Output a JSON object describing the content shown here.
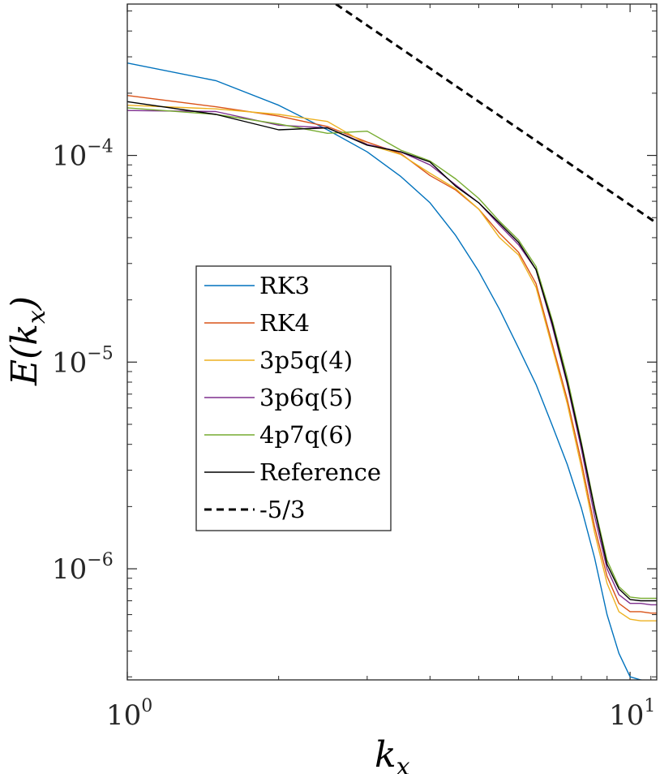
{
  "chart_data": {
    "type": "line",
    "title": "",
    "xscale": "log",
    "yscale": "log",
    "xlim": [
      1,
      11.3
    ],
    "ylim": [
      2.9e-07,
      0.00054
    ],
    "xticks": [
      {
        "base": "10",
        "exp": "0",
        "value": 1
      },
      {
        "base": "10",
        "exp": "1",
        "value": 10
      }
    ],
    "yticks": [
      {
        "base": "10",
        "exp": "−6",
        "value": 1e-06
      },
      {
        "base": "10",
        "exp": "−5",
        "value": 1e-05
      },
      {
        "base": "10",
        "exp": "−4",
        "value": 0.0001
      }
    ],
    "xlabel": {
      "main": "k",
      "sub": "x"
    },
    "ylabel": {
      "prefix": "E(",
      "main": "k",
      "sub": "x",
      "suffix": ")"
    },
    "legend_position": "center-left",
    "x": [
      1,
      1.5,
      2,
      2.5,
      3,
      3.5,
      4,
      4.5,
      5,
      5.5,
      6,
      6.5,
      7,
      7.5,
      8,
      8.5,
      9,
      9.5,
      10,
      10.5,
      11,
      11.3
    ],
    "series": [
      {
        "name": "RK3",
        "color": "#0072BD",
        "dash": false,
        "values": [
          0.00028,
          0.00023,
          0.000175,
          0.000133,
          0.000104,
          7.9e-05,
          5.9e-05,
          4.1e-05,
          2.75e-05,
          1.8e-05,
          1.17e-05,
          7.8e-06,
          4.95e-06,
          3.2e-06,
          1.97e-06,
          1.13e-06,
          6e-07,
          3.9e-07,
          3e-07,
          2.9e-07,
          2.85e-07,
          2.8e-07
        ]
      },
      {
        "name": "RK4",
        "color": "#D95319",
        "dash": false,
        "values": [
          0.000195,
          0.000172,
          0.000155,
          0.000138,
          0.000116,
          0.000102,
          8e-05,
          6.8e-05,
          5.5e-05,
          4.2e-05,
          3.4e-05,
          2.4e-05,
          1.23e-05,
          6.6e-06,
          3.3e-06,
          1.6e-06,
          9.2e-07,
          6.8e-07,
          6.2e-07,
          6.2e-07,
          6.1e-07,
          6.1e-07
        ]
      },
      {
        "name": "3p5q(4)",
        "color": "#EDB120",
        "dash": false,
        "values": [
          0.000175,
          0.000168,
          0.000158,
          0.000146,
          0.000113,
          0.000101,
          8.2e-05,
          6.9e-05,
          5.5e-05,
          4e-05,
          3.3e-05,
          2.3e-05,
          1.18e-05,
          6.3e-06,
          3.1e-06,
          1.5e-06,
          8.5e-07,
          6.2e-07,
          5.7e-07,
          5.6e-07,
          5.6e-07,
          5.6e-07
        ]
      },
      {
        "name": "3p6q(5)",
        "color": "#7E2F8E",
        "dash": false,
        "values": [
          0.000165,
          0.000163,
          0.00014,
          0.000136,
          0.000113,
          0.000104,
          9e-05,
          7.2e-05,
          5.9e-05,
          4.6e-05,
          3.7e-05,
          2.8e-05,
          1.5e-05,
          7.8e-06,
          3.8e-06,
          1.8e-06,
          1e-06,
          7.5e-07,
          6.8e-07,
          6.8e-07,
          6.7e-07,
          6.7e-07
        ]
      },
      {
        "name": "4p7q(6)",
        "color": "#77AC30",
        "dash": false,
        "values": [
          0.00017,
          0.000158,
          0.000142,
          0.000128,
          0.000131,
          0.000106,
          9.4e-05,
          7.7e-05,
          6.2e-05,
          4.8e-05,
          3.9e-05,
          2.9e-05,
          1.6e-05,
          8.4e-06,
          4.1e-06,
          2e-06,
          1.1e-06,
          8.2e-07,
          7.3e-07,
          7.2e-07,
          7.2e-07,
          7.2e-07
        ]
      },
      {
        "name": "Reference",
        "color": "#000000",
        "dash": false,
        "values": [
          0.000182,
          0.000158,
          0.000133,
          0.000136,
          0.000112,
          0.000104,
          9.3e-05,
          7.1e-05,
          5.9e-05,
          4.7e-05,
          3.8e-05,
          2.8e-05,
          1.55e-05,
          8e-06,
          4e-06,
          1.95e-06,
          1.05e-06,
          8e-07,
          7.1e-07,
          7e-07,
          7e-07,
          7e-07
        ]
      },
      {
        "name": "-5/3",
        "color": "#000000",
        "dash": true,
        "x": [
          2.6,
          11.3
        ],
        "values": [
          0.00054,
          4.7e-05
        ]
      }
    ]
  }
}
